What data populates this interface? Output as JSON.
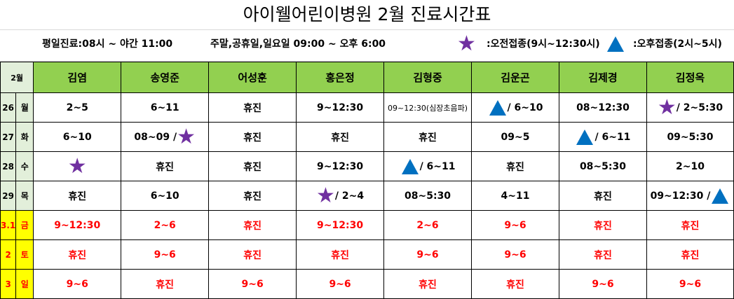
{
  "title": "아이웰어린이병원 2월 진료시간표",
  "info": {
    "weekday": "평일진료:08시 ~ 야간 11:00",
    "weekend": "주말,공휴일,일요일 09:00 ~ 오후 6:00",
    "star_legend": ":오전접종(9시~12:30시)",
    "triangle_legend": ":오후접종(2시~5시)"
  },
  "colors": {
    "header": "#92d050",
    "star": "#7030a0",
    "triangle": "#0070c0",
    "weekend_text": "#ff0000",
    "weekend_date": "#ffff00"
  },
  "table": {
    "month": "2월",
    "doctors": [
      "김염",
      "송영준",
      "어성훈",
      "홍은정",
      "김형중",
      "김운곤",
      "김제경",
      "김정옥"
    ],
    "rows": [
      {
        "date": "26",
        "day": "월",
        "weekend": false,
        "cells": [
          {
            "text": "2~5"
          },
          {
            "text": "6~11"
          },
          {
            "text": "휴진"
          },
          {
            "text": "9~12:30"
          },
          {
            "text": "09~12:30(심장초음파)",
            "small": true
          },
          {
            "icon_before": "triangle",
            "text": "/ 6~10"
          },
          {
            "text": "08~12:30"
          },
          {
            "icon_before": "star",
            "text": "/ 2~5:30"
          }
        ]
      },
      {
        "date": "27",
        "day": "화",
        "weekend": false,
        "cells": [
          {
            "text": "6~10"
          },
          {
            "text": "08~09 /",
            "icon_after": "star"
          },
          {
            "text": "휴진"
          },
          {
            "text": "휴진"
          },
          {
            "text": "휴진"
          },
          {
            "text": "09~5"
          },
          {
            "icon_before": "triangle",
            "text": "/ 6~11"
          },
          {
            "text": "09~5:30"
          }
        ]
      },
      {
        "date": "28",
        "day": "수",
        "weekend": false,
        "cells": [
          {
            "icon_before": "star",
            "text": ""
          },
          {
            "text": "휴진"
          },
          {
            "text": "휴진"
          },
          {
            "text": "9~12:30"
          },
          {
            "icon_before": "triangle",
            "text": "/ 6~11"
          },
          {
            "text": "휴진"
          },
          {
            "text": "08~5:30"
          },
          {
            "text": "2~10"
          }
        ]
      },
      {
        "date": "29",
        "day": "목",
        "weekend": false,
        "cells": [
          {
            "text": "휴진"
          },
          {
            "text": "6~10"
          },
          {
            "text": "휴진"
          },
          {
            "icon_before": "star",
            "text": "/ 2~4"
          },
          {
            "text": "08~5:30"
          },
          {
            "text": "4~11"
          },
          {
            "text": "휴진"
          },
          {
            "text": "09~12:30 /",
            "icon_after": "triangle"
          }
        ]
      },
      {
        "date": "3.1",
        "day": "금",
        "weekend": true,
        "cells": [
          {
            "text": "9~12:30"
          },
          {
            "text": "2~6"
          },
          {
            "text": "휴진"
          },
          {
            "text": "9~12:30"
          },
          {
            "text": "2~6"
          },
          {
            "text": "9~6"
          },
          {
            "text": "휴진"
          },
          {
            "text": "휴진"
          }
        ]
      },
      {
        "date": "2",
        "day": "토",
        "weekend": true,
        "cells": [
          {
            "text": "휴진"
          },
          {
            "text": "9~6"
          },
          {
            "text": "휴진"
          },
          {
            "text": "휴진"
          },
          {
            "text": "9~6"
          },
          {
            "text": "9~6"
          },
          {
            "text": "휴진"
          },
          {
            "text": "휴진"
          }
        ]
      },
      {
        "date": "3",
        "day": "일",
        "weekend": true,
        "cells": [
          {
            "text": "9~6"
          },
          {
            "text": "휴진"
          },
          {
            "text": "9~6"
          },
          {
            "text": "9~6"
          },
          {
            "text": "휴진"
          },
          {
            "text": "휴진"
          },
          {
            "text": "9~6"
          },
          {
            "text": "9~6"
          }
        ]
      }
    ]
  }
}
